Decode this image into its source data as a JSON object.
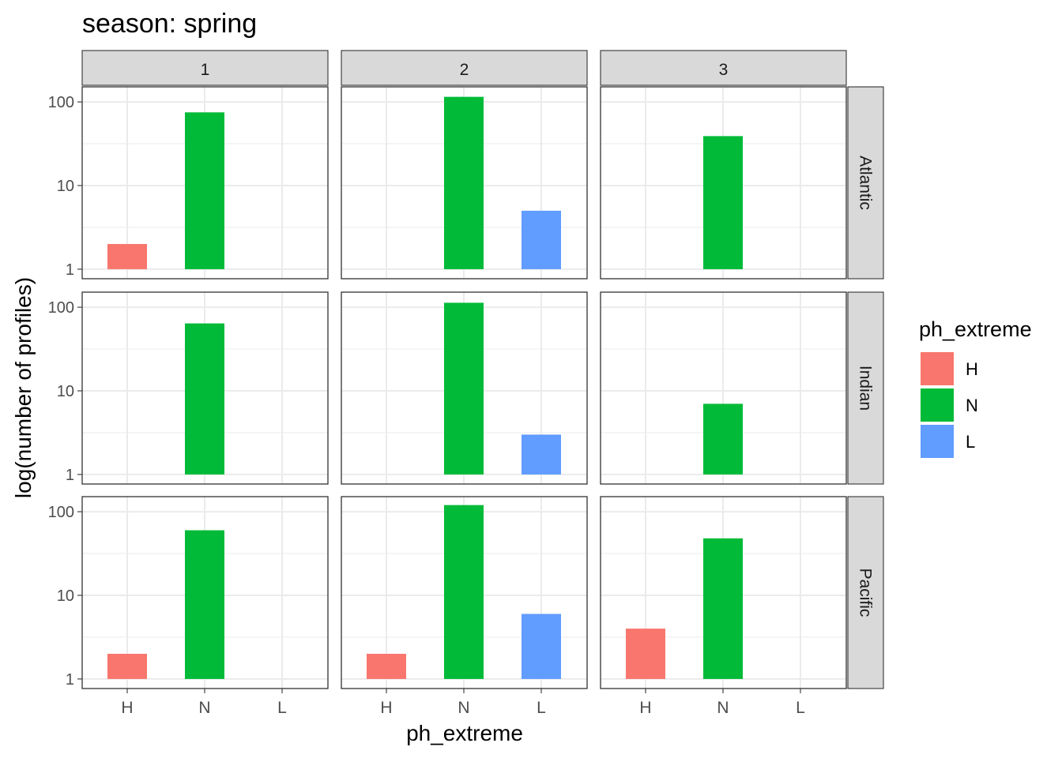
{
  "chart_data": {
    "type": "bar",
    "title": "season: spring",
    "xlabel": "ph_extreme",
    "ylabel": "log(number of profiles)",
    "y_scale": "log10",
    "ylim": [
      1,
      130
    ],
    "y_ticks": [
      "1",
      "10",
      "100"
    ],
    "categories": [
      "H",
      "N",
      "L"
    ],
    "col_facets": [
      "1",
      "2",
      "3"
    ],
    "row_facets": [
      "Atlantic",
      "Indian",
      "Pacific"
    ],
    "legend": {
      "title": "ph_extreme",
      "position": "right",
      "entries": [
        {
          "label": "H",
          "color": "#F8766D"
        },
        {
          "label": "N",
          "color": "#00BA38"
        },
        {
          "label": "L",
          "color": "#619CFF"
        }
      ]
    },
    "grid": true,
    "panels": [
      {
        "row": "Atlantic",
        "col": "1",
        "values": {
          "H": 2,
          "N": 75,
          "L": null
        }
      },
      {
        "row": "Atlantic",
        "col": "2",
        "values": {
          "H": null,
          "N": 115,
          "L": 5
        }
      },
      {
        "row": "Atlantic",
        "col": "3",
        "values": {
          "H": null,
          "N": 39,
          "L": null
        }
      },
      {
        "row": "Indian",
        "col": "1",
        "values": {
          "H": null,
          "N": 64,
          "L": null
        }
      },
      {
        "row": "Indian",
        "col": "2",
        "values": {
          "H": null,
          "N": 113,
          "L": 3
        }
      },
      {
        "row": "Indian",
        "col": "3",
        "values": {
          "H": null,
          "N": 7,
          "L": null
        }
      },
      {
        "row": "Pacific",
        "col": "1",
        "values": {
          "H": 2,
          "N": 60,
          "L": null
        }
      },
      {
        "row": "Pacific",
        "col": "2",
        "values": {
          "H": 2,
          "N": 120,
          "L": 6
        }
      },
      {
        "row": "Pacific",
        "col": "3",
        "values": {
          "H": 4,
          "N": 48,
          "L": null
        }
      }
    ]
  }
}
